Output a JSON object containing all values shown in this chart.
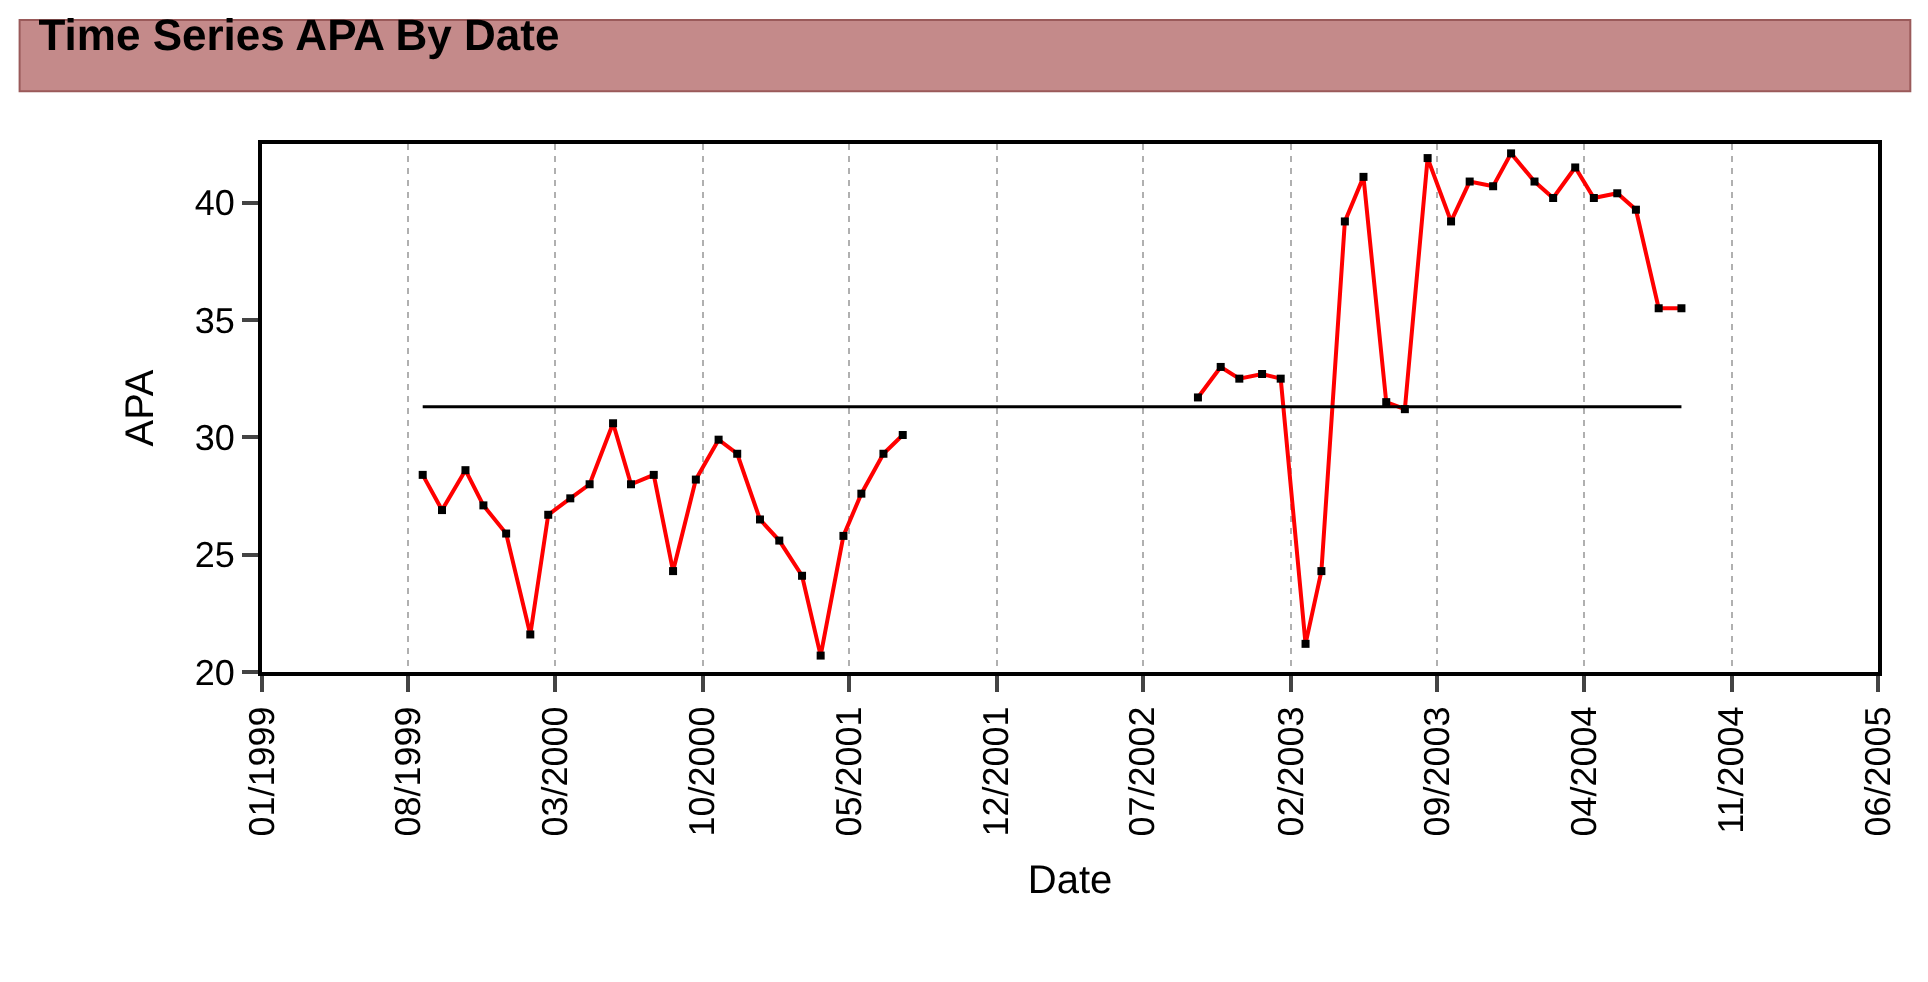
{
  "chart_data": {
    "type": "line",
    "title": "Time Series APA By Date",
    "xlabel": "Date",
    "ylabel": "APA",
    "x": [
      "1999-08-22",
      "1999-09-19",
      "1999-10-23",
      "1999-11-18",
      "1999-12-21",
      "2000-01-25",
      "2000-02-20",
      "2000-03-23",
      "2000-04-20",
      "2000-05-24",
      "2000-06-19",
      "2000-07-22",
      "2000-08-19",
      "2000-09-21",
      "2000-10-24",
      "2000-11-20",
      "2000-12-23",
      "2001-01-20",
      "2001-02-22",
      "2001-03-21",
      "2001-04-23",
      "2001-05-19",
      "2001-06-20",
      "2001-07-18",
      "2002-01-01",
      "2002-09-19",
      "2002-10-22",
      "2002-11-18",
      "2002-12-21",
      "2003-01-17",
      "2003-02-22",
      "2003-03-17",
      "2003-04-20",
      "2003-05-17",
      "2003-06-19",
      "2003-07-16",
      "2003-08-18",
      "2003-09-21",
      "2003-10-18",
      "2003-11-21",
      "2003-12-17",
      "2004-01-20",
      "2004-02-16",
      "2004-03-19",
      "2004-04-15",
      "2004-05-19",
      "2004-06-15",
      "2004-07-18",
      "2004-08-20"
    ],
    "series": [
      {
        "color": "#ff0000",
        "values": [
          28.4,
          26.9,
          28.6,
          27.1,
          25.9,
          21.6,
          26.7,
          27.4,
          28.0,
          30.6,
          28.0,
          28.4,
          24.3,
          28.2,
          29.9,
          29.3,
          26.5,
          25.6,
          24.1,
          20.7,
          25.8,
          27.6,
          29.3,
          30.1,
          null,
          31.7,
          33.0,
          32.5,
          32.7,
          32.5,
          21.2,
          24.3,
          39.2,
          41.1,
          31.5,
          31.2,
          41.9,
          39.2,
          40.9,
          40.7,
          42.1,
          40.9,
          40.2,
          41.5,
          40.2,
          40.4,
          39.7,
          35.5,
          35.5
        ]
      }
    ],
    "xlim": [
      "1999-01-01",
      "2005-06-01"
    ],
    "xticks": [
      {
        "value": "1999-01-01",
        "label": "01/1999"
      },
      {
        "value": "1999-08-01",
        "label": "08/1999"
      },
      {
        "value": "2000-03-01",
        "label": "03/2000"
      },
      {
        "value": "2000-10-01",
        "label": "10/2000"
      },
      {
        "value": "2001-05-01",
        "label": "05/2001"
      },
      {
        "value": "2001-12-01",
        "label": "12/2001"
      },
      {
        "value": "2002-07-01",
        "label": "07/2002"
      },
      {
        "value": "2003-02-01",
        "label": "02/2003"
      },
      {
        "value": "2003-09-01",
        "label": "09/2003"
      },
      {
        "value": "2004-04-01",
        "label": "04/2004"
      },
      {
        "value": "2004-11-01",
        "label": "11/2004"
      },
      {
        "value": "2005-06-01",
        "label": "06/2005"
      }
    ],
    "ylim": [
      20,
      42.5
    ],
    "yticks": [
      20,
      25,
      30,
      35,
      40
    ],
    "ref_lines": [
      {
        "axis": "y",
        "value": 31.3,
        "color": "#000000"
      }
    ],
    "grid": "x",
    "marker": "square",
    "line_style": "solid"
  }
}
